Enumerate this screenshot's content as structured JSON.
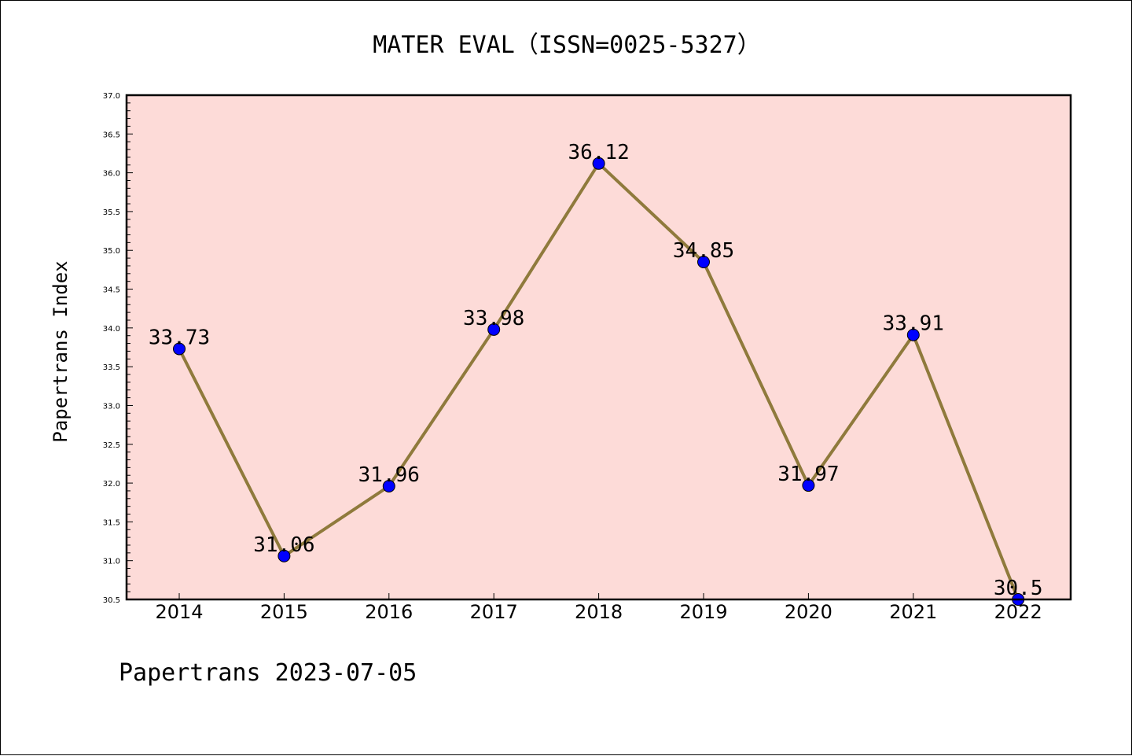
{
  "chart_data": {
    "type": "line",
    "title": "MATER EVAL（ISSN=0025-5327）",
    "ylabel": "Papertrans Index",
    "xlabel": "",
    "footer": "Papertrans 2023-07-05",
    "categories": [
      "2014",
      "2015",
      "2016",
      "2017",
      "2018",
      "2019",
      "2020",
      "2021",
      "2022"
    ],
    "series": [
      {
        "values": [
          33.73,
          31.06,
          31.96,
          33.98,
          36.12,
          34.85,
          31.97,
          33.91,
          30.5
        ]
      }
    ],
    "data_labels": [
      "33.73",
      "31.06",
      "31.96",
      "33.98",
      "36.12",
      "34.85",
      "31.97",
      "33.91",
      "30.5"
    ],
    "ylim": [
      30.5,
      37.0
    ],
    "yticks": [
      "30.5",
      "31.0",
      "31.5",
      "32.0",
      "32.5",
      "33.0",
      "33.5",
      "34.0",
      "34.5",
      "35.0",
      "35.5",
      "36.0",
      "36.5",
      "37.0"
    ],
    "grid": false,
    "colors": {
      "plot_background": "#fddbd8",
      "line": "#8f7a3c",
      "marker": "#0000ff",
      "axis": "#000000"
    }
  }
}
